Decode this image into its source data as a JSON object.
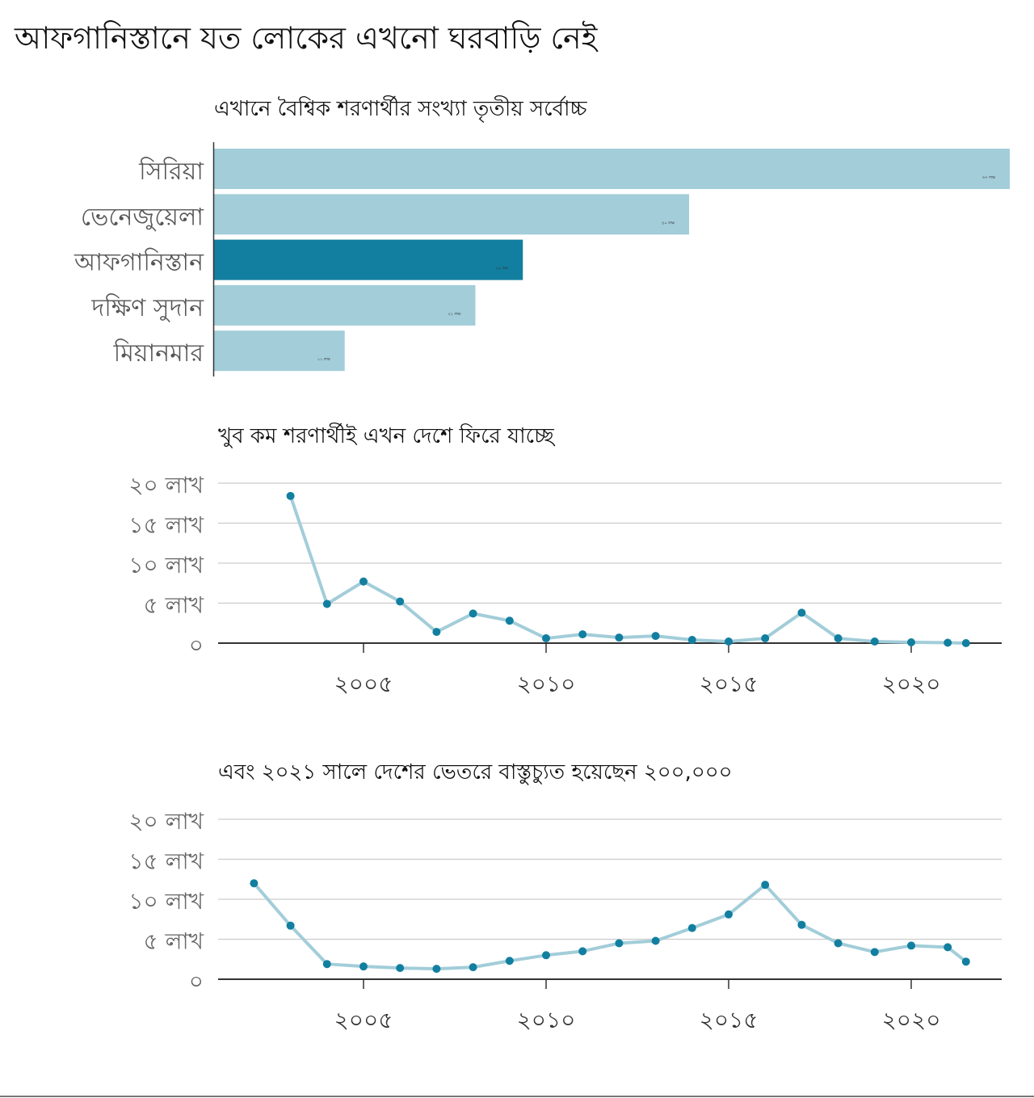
{
  "title": "আফগানিস্তানে যত লোকের এখনো ঘরবাড়ি নেই",
  "colors": {
    "light": "#a2cdd9",
    "highlight": "#127fa0",
    "point": "#127fa0",
    "line": "#a2cdd9"
  },
  "chart_data": [
    {
      "type": "bar",
      "title": "এখানে বৈশ্বিক শরণার্থীর সংখ্যা তৃতীয় সর্বোচ্চ",
      "categories": [
        "সিরিয়া",
        "ভেনেজুয়েলা",
        "আফগানিস্তান",
        "দক্ষিণ সুদান",
        "মিয়ানমার"
      ],
      "values": [
        67,
        40,
        26,
        22,
        11
      ],
      "value_labels": [
        "৬৭ লক্ষ",
        "৪০ লক্ষ",
        "২৬ লক্ষ",
        "২২ লক্ষ",
        "১১ লক্ষ"
      ],
      "highlight": "আফগানিস্তান",
      "unit": "lakh"
    },
    {
      "type": "line",
      "title": "খুব কম শরণার্থীই এখন দেশে ফিরে যাচ্ছে",
      "x": [
        2003,
        2004,
        2005,
        2006,
        2007,
        2008,
        2009,
        2010,
        2011,
        2012,
        2013,
        2014,
        2015,
        2016,
        2017,
        2018,
        2019,
        2020,
        2021,
        2021.5
      ],
      "y": [
        18.4,
        4.9,
        7.7,
        5.2,
        1.4,
        3.7,
        2.8,
        0.6,
        1.1,
        0.7,
        0.9,
        0.4,
        0.2,
        0.6,
        3.8,
        0.6,
        0.2,
        0.1,
        0.05,
        0.0
      ],
      "ylim": [
        0,
        20
      ],
      "xlim": [
        1999,
        2023.5
      ],
      "yticks": [
        0,
        5,
        10,
        15,
        20
      ],
      "ytick_labels": [
        "০",
        "৫ লাখ",
        "১০ লাখ",
        "১৫ লাখ",
        "২০ লাখ"
      ],
      "xticks": [
        2005,
        2010,
        2015,
        2020
      ],
      "xtick_labels": [
        "২০০৫",
        "২০১০",
        "২০১৫",
        "২০২০"
      ],
      "grid": true
    },
    {
      "type": "line",
      "title": "এবং ২০২১ সালে দেশের ভেতরে বাস্তুচ্যুত হয়েছেন ২০০,০০০",
      "x": [
        2002,
        2003,
        2004,
        2005,
        2006,
        2007,
        2008,
        2009,
        2010,
        2011,
        2012,
        2013,
        2014,
        2015,
        2016,
        2017,
        2018,
        2019,
        2020,
        2021,
        2021.5
      ],
      "y": [
        12.0,
        6.7,
        1.9,
        1.6,
        1.4,
        1.3,
        1.5,
        2.3,
        3.0,
        3.5,
        4.5,
        4.8,
        6.4,
        8.1,
        11.8,
        6.8,
        4.5,
        3.4,
        4.2,
        4.0,
        2.2
      ],
      "ylim": [
        0,
        20
      ],
      "xlim": [
        1999,
        2023.5
      ],
      "yticks": [
        0,
        5,
        10,
        15,
        20
      ],
      "ytick_labels": [
        "০",
        "৫ লাখ",
        "১০ লাখ",
        "১৫ লাখ",
        "২০ লাখ"
      ],
      "xticks": [
        2005,
        2010,
        2015,
        2020
      ],
      "xtick_labels": [
        "২০০৫",
        "২০১০",
        "২০১৫",
        "২০২০"
      ],
      "grid": true
    }
  ]
}
